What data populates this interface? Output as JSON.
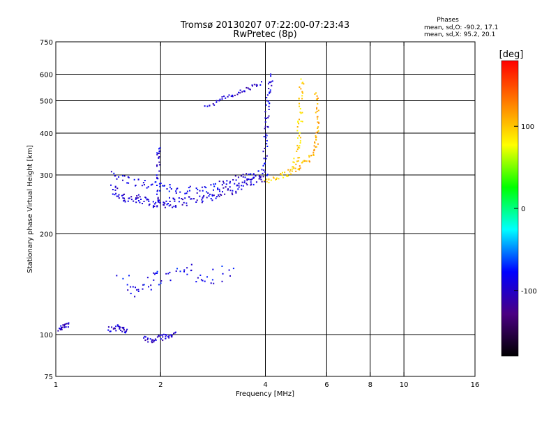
{
  "chart_data": {
    "type": "scatter",
    "title": "Tromsø 20130207 07:22:00-07:23:43",
    "subtitle": "RwPretec (8p)",
    "xlabel": "Frequency [MHz]",
    "ylabel": "Stationary phase Virtual Height [km]",
    "xscale": "log",
    "yscale": "log",
    "xlim": [
      1,
      16
    ],
    "ylim": [
      75,
      750
    ],
    "x_ticks": [
      {
        "value": 1,
        "label": "1"
      },
      {
        "value": 2,
        "label": "2"
      },
      {
        "value": 4,
        "label": "4"
      },
      {
        "value": 6,
        "label": "6"
      },
      {
        "value": 8,
        "label": "8"
      },
      {
        "value": 10,
        "label": "10"
      },
      {
        "value": 16,
        "label": "16"
      }
    ],
    "y_ticks": [
      {
        "value": 75,
        "label": "75"
      },
      {
        "value": 100,
        "label": "100"
      },
      {
        "value": 200,
        "label": "200"
      },
      {
        "value": 300,
        "label": "300"
      },
      {
        "value": 400,
        "label": "400"
      },
      {
        "value": 500,
        "label": "500"
      },
      {
        "value": 600,
        "label": "600"
      },
      {
        "value": 750,
        "label": "750"
      }
    ],
    "x_grid": [
      2,
      4,
      6,
      8,
      10
    ],
    "y_grid": [
      100,
      200,
      300,
      400,
      500,
      600
    ],
    "grid": true,
    "stats": {
      "heading": "Phases",
      "line_o": "mean, sd,O: -90.2, 17.1",
      "line_x": "mean, sd,X:  95.2, 20.1"
    },
    "colorbar": {
      "label": "[deg]",
      "range": [
        -180,
        180
      ],
      "ticks": [
        {
          "value": 100,
          "label": "100"
        },
        {
          "value": 0,
          "label": "0"
        },
        {
          "value": -100,
          "label": "-100"
        }
      ],
      "stops": [
        "#000000",
        "#4b0082",
        "#0000ff",
        "#00ffff",
        "#00ff00",
        "#ffff00",
        "#ff7f00",
        "#ff0000"
      ]
    },
    "traces": [
      {
        "kind": "o-trace-floor",
        "phase": -95,
        "points": [
          [
            1.45,
            275
          ],
          [
            1.5,
            262
          ],
          [
            1.6,
            256
          ],
          [
            1.7,
            253
          ],
          [
            1.8,
            251
          ],
          [
            1.9,
            249
          ],
          [
            2.0,
            248
          ],
          [
            2.1,
            248
          ],
          [
            2.2,
            249
          ],
          [
            2.4,
            251
          ],
          [
            2.6,
            255
          ],
          [
            2.8,
            260
          ],
          [
            3.0,
            266
          ],
          [
            3.2,
            272
          ],
          [
            3.4,
            278
          ],
          [
            3.6,
            285
          ],
          [
            3.8,
            292
          ],
          [
            4.0,
            300
          ]
        ],
        "spread": 0.07
      },
      {
        "kind": "o-trace-band",
        "phase": -88,
        "points": [
          [
            1.45,
            300
          ],
          [
            1.6,
            290
          ],
          [
            1.8,
            282
          ],
          [
            2.0,
            276
          ],
          [
            2.2,
            272
          ],
          [
            2.5,
            270
          ],
          [
            2.8,
            276
          ],
          [
            3.1,
            285
          ],
          [
            3.4,
            293
          ],
          [
            3.7,
            300
          ],
          [
            4.0,
            305
          ]
        ],
        "spread": 0.06
      },
      {
        "kind": "o-vertical",
        "phase": -90,
        "points": [
          [
            4.0,
            300
          ],
          [
            4.0,
            360
          ],
          [
            4.05,
            420
          ],
          [
            4.05,
            480
          ],
          [
            4.1,
            540
          ],
          [
            4.15,
            600
          ]
        ],
        "spread": 0.05
      },
      {
        "kind": "o-upper-arc",
        "phase": -95,
        "points": [
          [
            2.7,
            480
          ],
          [
            3.0,
            505
          ],
          [
            3.3,
            525
          ],
          [
            3.6,
            545
          ],
          [
            3.9,
            565
          ]
        ],
        "spread": 0.03
      },
      {
        "kind": "x-trace",
        "phase": 95,
        "points": [
          [
            4.0,
            285
          ],
          [
            4.3,
            293
          ],
          [
            4.6,
            300
          ],
          [
            4.8,
            315
          ],
          [
            4.95,
            345
          ],
          [
            5.0,
            390
          ],
          [
            5.05,
            450
          ],
          [
            5.05,
            520
          ],
          [
            5.1,
            580
          ]
        ],
        "spread": 0.05
      },
      {
        "kind": "x-trace-outer",
        "phase": 110,
        "points": [
          [
            4.9,
            310
          ],
          [
            5.2,
            325
          ],
          [
            5.45,
            345
          ],
          [
            5.6,
            370
          ],
          [
            5.65,
            410
          ],
          [
            5.65,
            470
          ],
          [
            5.6,
            540
          ]
        ],
        "spread": 0.04
      },
      {
        "kind": "spread-column",
        "phase": -92,
        "points": [
          [
            1.97,
            240
          ],
          [
            1.97,
            290
          ],
          [
            1.97,
            340
          ],
          [
            1.97,
            365
          ]
        ],
        "spread": 0.04
      },
      {
        "kind": "low-cluster-a",
        "phase": -100,
        "points": [
          [
            1.02,
            103
          ],
          [
            1.05,
            106
          ],
          [
            1.1,
            107
          ]
        ],
        "spread": 0.03
      },
      {
        "kind": "low-cluster-b",
        "phase": -95,
        "points": [
          [
            1.42,
            104
          ],
          [
            1.5,
            105
          ],
          [
            1.55,
            104
          ],
          [
            1.6,
            103
          ]
        ],
        "spread": 0.04
      },
      {
        "kind": "low-cluster-c",
        "phase": -98,
        "points": [
          [
            1.8,
            97
          ],
          [
            1.9,
            96
          ],
          [
            2.0,
            98
          ],
          [
            2.1,
            99
          ],
          [
            2.2,
            100
          ]
        ],
        "spread": 0.04
      },
      {
        "kind": "e-sporadic",
        "phase": -85,
        "points": [
          [
            1.55,
            150
          ],
          [
            1.7,
            135
          ],
          [
            1.9,
            145
          ],
          [
            2.1,
            150
          ],
          [
            2.4,
            155
          ],
          [
            2.8,
            148
          ],
          [
            3.2,
            160
          ]
        ],
        "spread": 0.12
      }
    ]
  }
}
